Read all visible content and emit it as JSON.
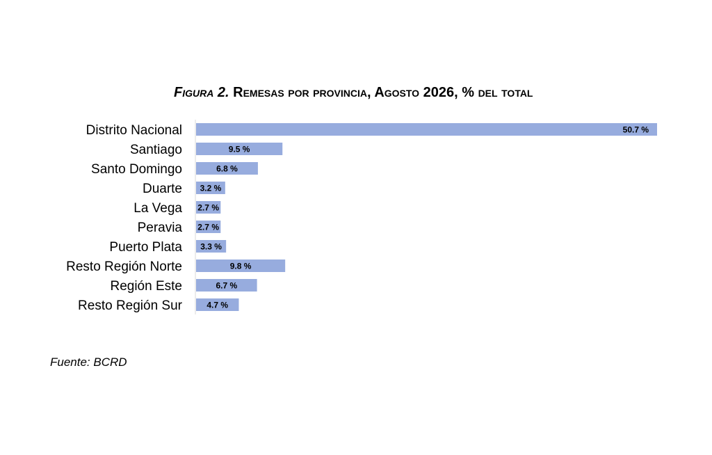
{
  "figure": {
    "label": "Figura 2.",
    "title": "Remesas por provincia, Agosto 2026, % del total"
  },
  "source": "Fuente: BCRD",
  "chart_data": {
    "type": "bar",
    "orientation": "horizontal",
    "categories": [
      "Distrito Nacional",
      "Santiago",
      "Santo Domingo",
      "Duarte",
      "La Vega",
      "Peravia",
      "Puerto Plata",
      "Resto Región Norte",
      "Región Este",
      "Resto Región Sur"
    ],
    "values": [
      50.7,
      9.5,
      6.8,
      3.2,
      2.7,
      2.7,
      3.3,
      9.8,
      6.7,
      4.7
    ],
    "data_labels": [
      "50.7 %",
      "9.5 %",
      "6.8 %",
      "3.2 %",
      "2.7 %",
      "2.7 %",
      "3.3 %",
      "9.8 %",
      "6.7 %",
      "4.7 %"
    ],
    "title": "Remesas por provincia, Agosto 2026, % del total",
    "xlabel": "",
    "ylabel": "",
    "xlim": [
      0,
      50.7
    ],
    "grid": false,
    "legend": "none",
    "bar_color": "#97acde",
    "label_color": "#000000"
  }
}
